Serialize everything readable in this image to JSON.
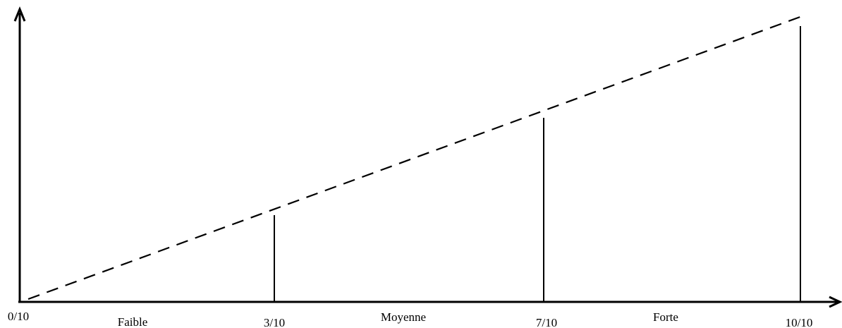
{
  "scale": {
    "min_label": "0/10",
    "ticks": [
      {
        "label": "3/10",
        "value": 3
      },
      {
        "label": "7/10",
        "value": 7
      },
      {
        "label": "10/10",
        "value": 10
      }
    ],
    "zones": [
      {
        "label": "Faible",
        "from": 0,
        "to": 3
      },
      {
        "label": "Moyenne",
        "from": 3,
        "to": 7
      },
      {
        "label": "Forte",
        "from": 7,
        "to": 10
      }
    ],
    "trend_line_style": "dashed",
    "color": "#000000"
  }
}
